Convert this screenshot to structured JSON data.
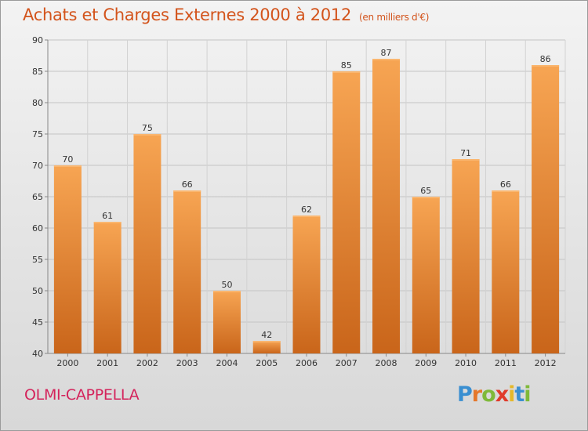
{
  "title": "Achats et Charges Externes 2000 à 2012",
  "unit": "(en milliers d'€)",
  "location": "OLMI-CAPPELLA",
  "brand": {
    "text": "Proxiti",
    "letter_colors": [
      "#3a8fd1",
      "#e5772a",
      "#7fb93a",
      "#e03a2a",
      "#e5b82a",
      "#3a8fd1",
      "#7fb93a"
    ]
  },
  "colors": {
    "bar_top": "#f7a553",
    "bar_bottom": "#c9651a",
    "title": "#d3541c",
    "location": "#d4235b"
  },
  "chart_data": {
    "type": "bar",
    "categories": [
      "2000",
      "2001",
      "2002",
      "2003",
      "2004",
      "2005",
      "2006",
      "2007",
      "2008",
      "2009",
      "2010",
      "2011",
      "2012"
    ],
    "values": [
      70,
      61,
      75,
      66,
      50,
      42,
      62,
      85,
      87,
      65,
      71,
      66,
      86
    ],
    "ylim": [
      40,
      90
    ],
    "yticks": [
      40,
      45,
      50,
      55,
      60,
      65,
      70,
      75,
      80,
      85,
      90
    ],
    "grid": true,
    "data_labels": true
  }
}
